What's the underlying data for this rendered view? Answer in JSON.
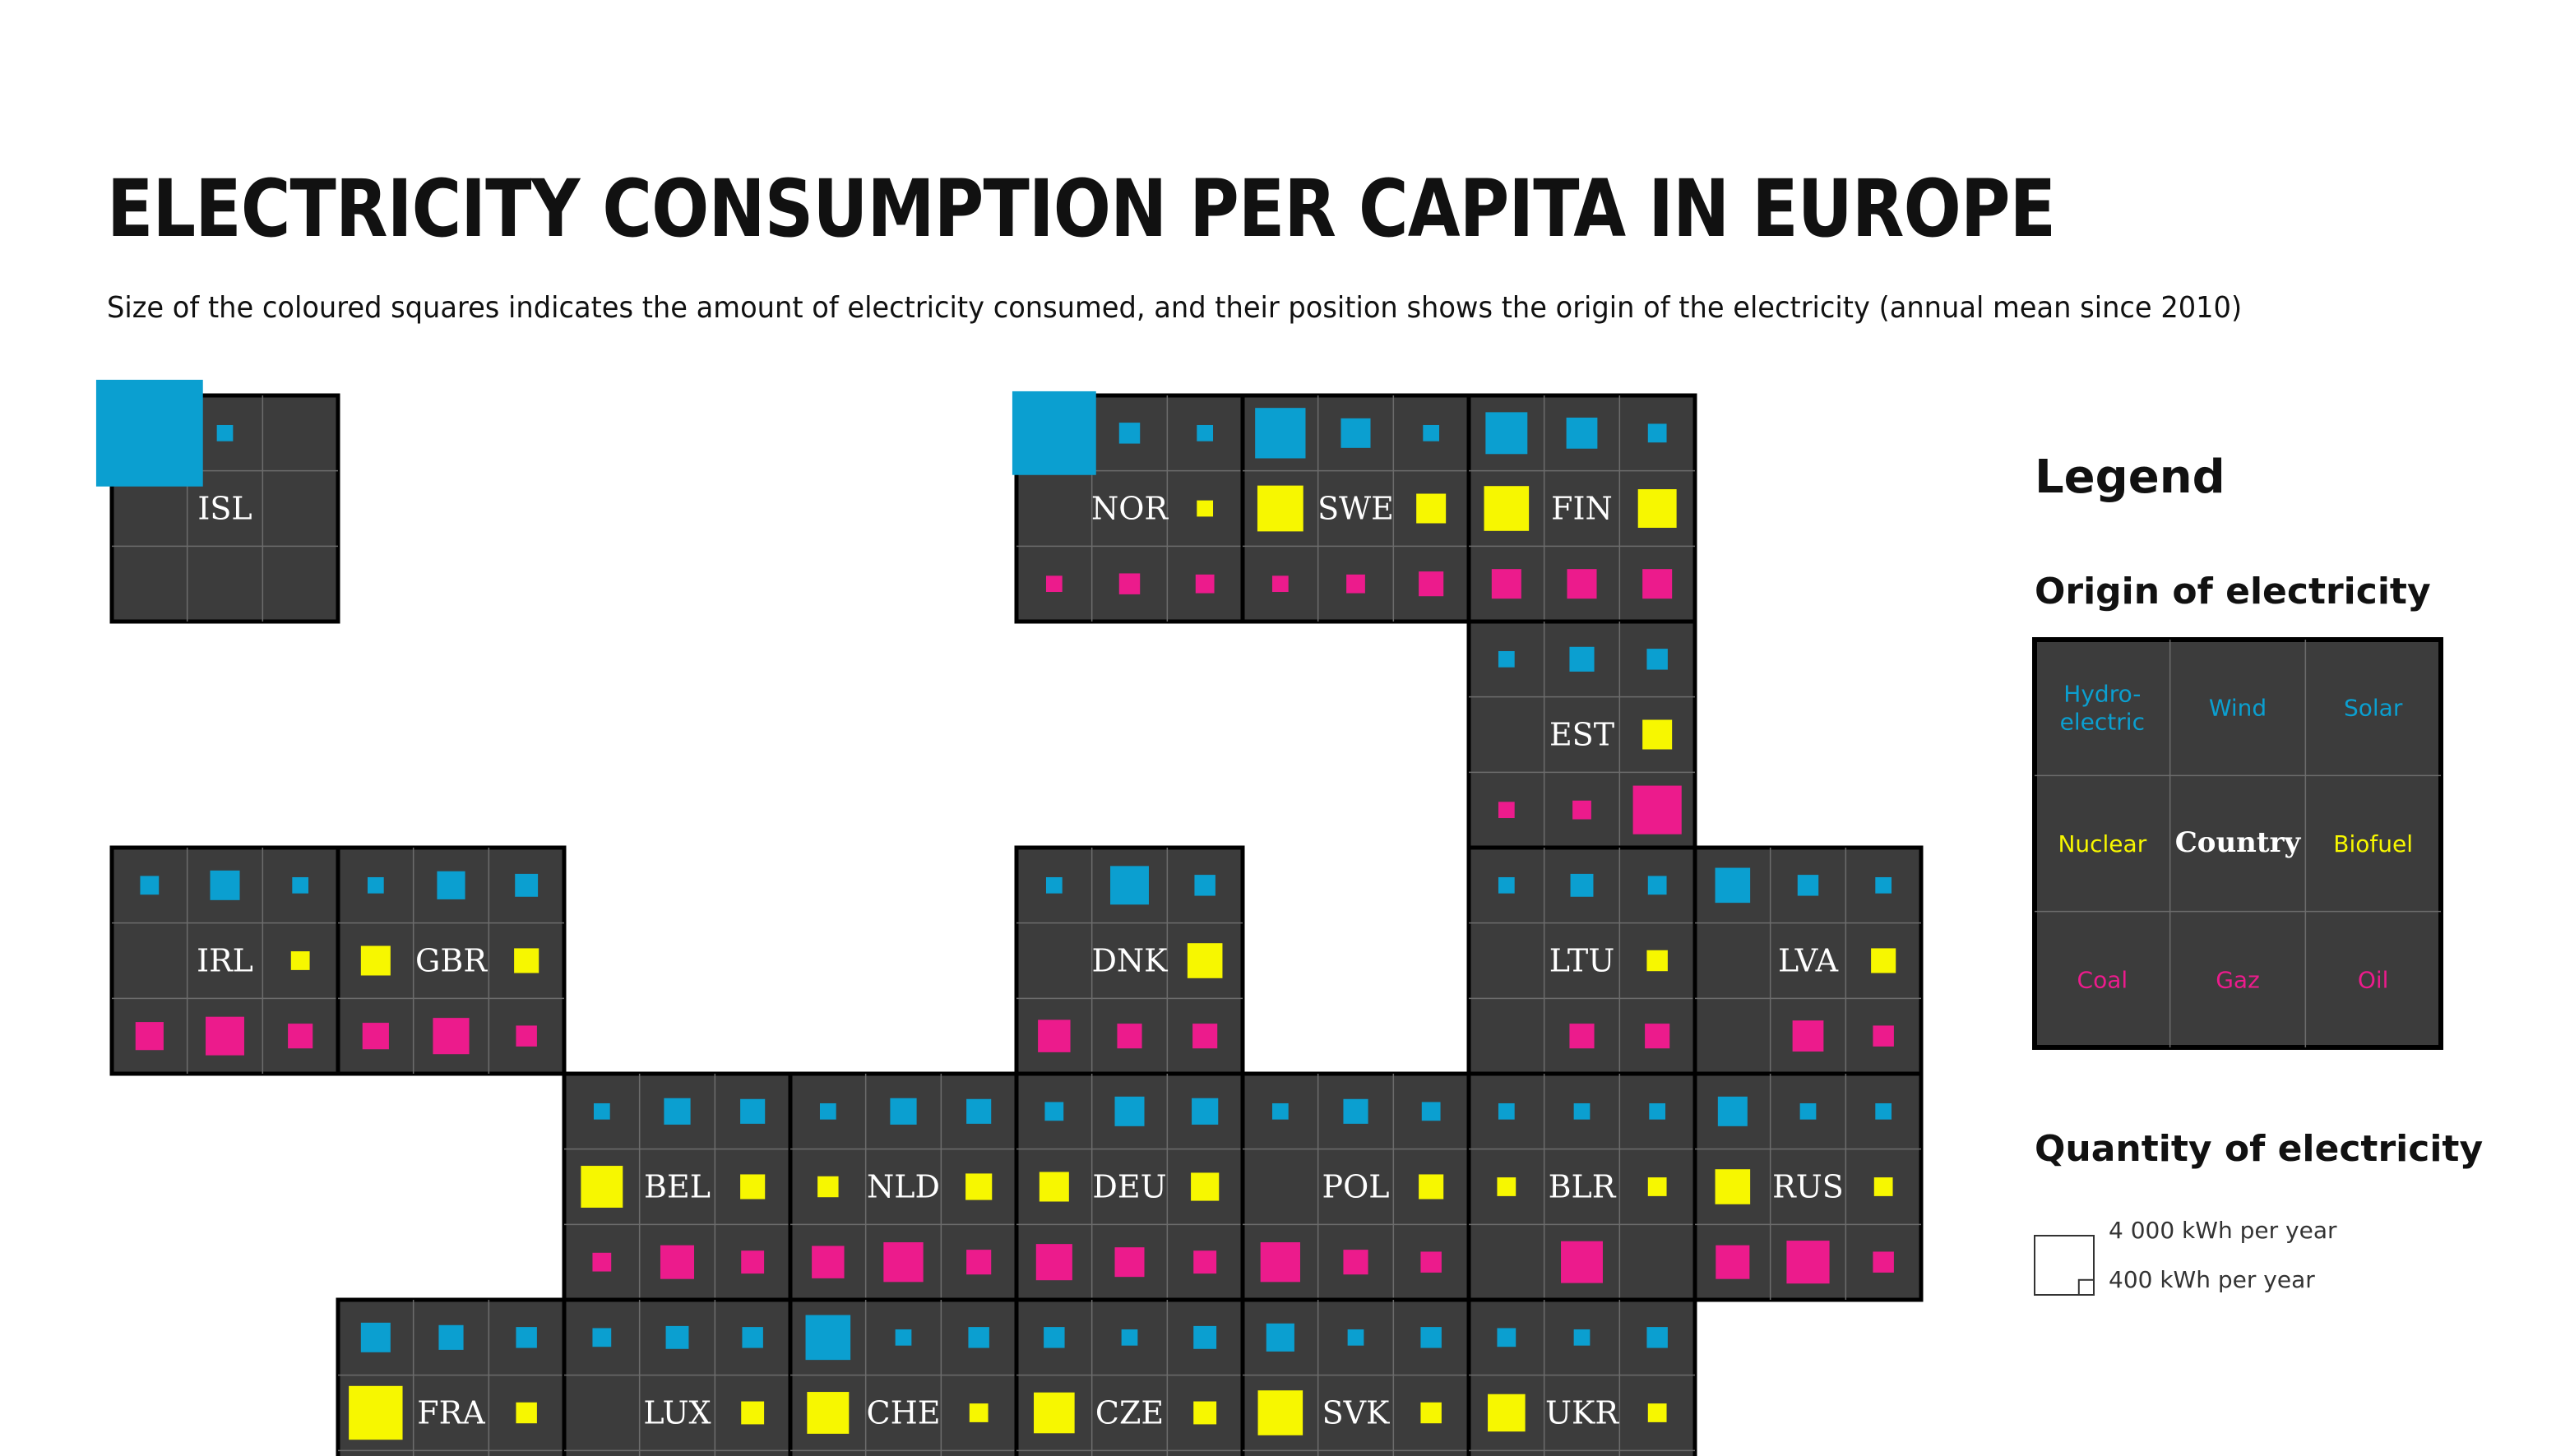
{
  "title": "Electricity consumption per capita in Europe",
  "subtitle": "Size of the coloured squares indicates the amount of electricity consumed, and their position shows the origin of the electricity (annual mean since 2010)",
  "colors": {
    "tile": "#3c3c3c",
    "renewable": "#0b9fd0",
    "low_carbon": "#f7f700",
    "fossil": "#ec1b8c",
    "country_text": "#ffffff"
  },
  "legend": {
    "title": "Legend",
    "origin_title": "Origin of electricity",
    "cells": [
      "Hydro-\nelectric",
      "Wind",
      "Solar",
      "Nuclear",
      "Country",
      "Biofuel",
      "Coal",
      "Gaz",
      "Oil"
    ],
    "quantity_title": "Quantity of electricity",
    "quantity_big_label": "4 000 kWh per year",
    "quantity_small_label": "400 kWh per year",
    "quantity_big_kwh": 4000,
    "quantity_small_kwh": 400
  },
  "chart_data": {
    "type": "tile-map",
    "unit": "kWh per capita per year",
    "sources": [
      "Hydroelectric",
      "Wind",
      "Solar",
      "Nuclear",
      "Biofuel",
      "Coal",
      "Gaz",
      "Oil"
    ],
    "grid_columns": 8,
    "countries": [
      {
        "code": "ISL",
        "col": 0,
        "row": 0,
        "values": [
          13000,
          300,
          0,
          0,
          0,
          0,
          0,
          0
        ]
      },
      {
        "code": "NOR",
        "col": 4,
        "row": 0,
        "values": [
          8000,
          500,
          300,
          0,
          300,
          300,
          500,
          400
        ]
      },
      {
        "code": "SWE",
        "col": 5,
        "row": 0,
        "values": [
          2900,
          1000,
          300,
          2400,
          1000,
          300,
          400,
          700
        ]
      },
      {
        "code": "FIN",
        "col": 6,
        "row": 0,
        "values": [
          2000,
          1100,
          400,
          2300,
          1700,
          1000,
          1000,
          1000
        ]
      },
      {
        "code": "EST",
        "col": 6,
        "row": 1,
        "values": [
          300,
          700,
          500,
          0,
          1000,
          300,
          400,
          2700
        ]
      },
      {
        "code": "IRL",
        "col": 0,
        "row": 2,
        "values": [
          400,
          1000,
          300,
          0,
          400,
          900,
          1700,
          700
        ]
      },
      {
        "code": "GBR",
        "col": 1,
        "row": 2,
        "values": [
          300,
          900,
          600,
          1000,
          700,
          800,
          1500,
          500
        ]
      },
      {
        "code": "DNK",
        "col": 4,
        "row": 2,
        "values": [
          300,
          1700,
          500,
          0,
          1400,
          1200,
          700,
          700
        ]
      },
      {
        "code": "LTU",
        "col": 6,
        "row": 2,
        "values": [
          300,
          600,
          400,
          0,
          500,
          0,
          700,
          700
        ]
      },
      {
        "code": "LVA",
        "col": 7,
        "row": 2,
        "values": [
          1400,
          500,
          300,
          0,
          700,
          0,
          1100,
          500
        ]
      },
      {
        "code": "BEL",
        "col": 2,
        "row": 3,
        "values": [
          300,
          800,
          700,
          2000,
          700,
          400,
          1300,
          600
        ]
      },
      {
        "code": "NLD",
        "col": 3,
        "row": 3,
        "values": [
          300,
          800,
          700,
          500,
          800,
          1200,
          1800,
          700
        ]
      },
      {
        "code": "DEU",
        "col": 4,
        "row": 3,
        "values": [
          400,
          1000,
          800,
          1000,
          900,
          1500,
          1000,
          600
        ]
      },
      {
        "code": "POL",
        "col": 5,
        "row": 3,
        "values": [
          300,
          700,
          400,
          0,
          700,
          1800,
          700,
          500
        ]
      },
      {
        "code": "BLR",
        "col": 6,
        "row": 3,
        "values": [
          300,
          300,
          300,
          400,
          400,
          0,
          2000,
          0
        ]
      },
      {
        "code": "RUS",
        "col": 7,
        "row": 3,
        "values": [
          1000,
          300,
          300,
          1400,
          400,
          1300,
          2100,
          500
        ]
      },
      {
        "code": "FRA",
        "col": 1,
        "row": 4,
        "values": [
          1000,
          700,
          500,
          3300,
          500,
          null,
          null,
          null
        ]
      },
      {
        "code": "LUX",
        "col": 2,
        "row": 4,
        "values": [
          400,
          600,
          500,
          0,
          600,
          null,
          null,
          null
        ]
      },
      {
        "code": "CHE",
        "col": 3,
        "row": 4,
        "values": [
          2300,
          300,
          500,
          2000,
          400,
          null,
          null,
          null
        ]
      },
      {
        "code": "CZE",
        "col": 4,
        "row": 4,
        "values": [
          500,
          300,
          600,
          1900,
          600,
          null,
          null,
          null
        ]
      },
      {
        "code": "SVK",
        "col": 5,
        "row": 4,
        "values": [
          900,
          300,
          500,
          2300,
          500,
          null,
          null,
          null
        ]
      },
      {
        "code": "UKR",
        "col": 6,
        "row": 4,
        "values": [
          400,
          300,
          500,
          1600,
          400,
          null,
          null,
          null
        ]
      }
    ]
  }
}
